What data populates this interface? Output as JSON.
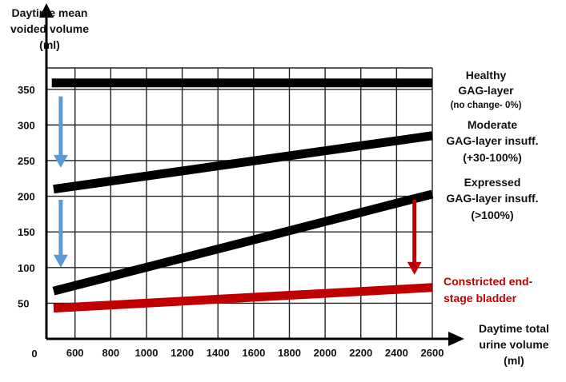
{
  "chart_data": {
    "type": "line",
    "ylabel_lines": [
      "Daytime mean",
      "voided volume",
      "(ml)"
    ],
    "xlabel_lines": [
      "Daytime total",
      "urine volume",
      "(ml)"
    ],
    "origin_label": "0",
    "xlim": [
      440,
      2600
    ],
    "ylim": [
      0,
      380
    ],
    "x_ticks": [
      600,
      800,
      1000,
      1200,
      1400,
      1600,
      1800,
      2000,
      2200,
      2400,
      2600
    ],
    "y_ticks": [
      50,
      100,
      150,
      200,
      250,
      300,
      350
    ],
    "grid": true,
    "series": [
      {
        "key": "healthy",
        "color": "#000000",
        "x": [
          470,
          2600
        ],
        "y": [
          359,
          359
        ],
        "label_lines": [
          "Healthy",
          "GAG-layer",
          "(no change- 0%)"
        ]
      },
      {
        "key": "moderate",
        "color": "#000000",
        "x": [
          480,
          2600
        ],
        "y": [
          210,
          285
        ],
        "label_lines": [
          "Moderate",
          "GAG-layer insuff.",
          "(+30-100%)"
        ]
      },
      {
        "key": "expressed",
        "color": "#000000",
        "x": [
          480,
          2600
        ],
        "y": [
          67,
          203
        ],
        "label_lines": [
          "Expressed",
          "GAG-layer insuff.",
          "(>100%)"
        ]
      },
      {
        "key": "endstage",
        "color": "#c00000",
        "x": [
          480,
          2600
        ],
        "y": [
          43,
          72
        ],
        "label_lines": [
          "Constricted end-",
          "stage bladder"
        ]
      }
    ],
    "annotations": [
      {
        "type": "arrow-down",
        "color": "#5b9bd5",
        "x": 520,
        "y_from": 340,
        "y_to": 240
      },
      {
        "type": "arrow-down",
        "color": "#5b9bd5",
        "x": 520,
        "y_from": 195,
        "y_to": 100
      },
      {
        "type": "arrow-down",
        "color": "#c00000",
        "x": 2500,
        "y_from": 195,
        "y_to": 90
      }
    ]
  }
}
